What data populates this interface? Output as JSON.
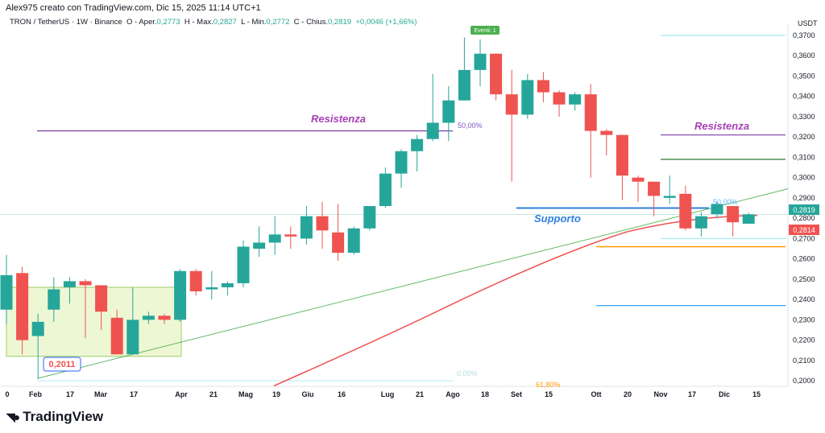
{
  "header": {
    "credit": "Alex975 creato con TradingView.com, Dic 15, 2025 11:14 UTC+1"
  },
  "legend": {
    "symbol": "TRON / TetherUS · 1W · Binance",
    "o_label": "O - Aper.",
    "o": "0,2773",
    "h_label": "H - Max.",
    "h": "0,2827",
    "l_label": "L - Min.",
    "l": "0,2772",
    "c_label": "C - Chius.",
    "c": "0,2819",
    "change": "+0,0046 (+1,66%)"
  },
  "axis": {
    "currency": "USDT",
    "prices": [
      "0,3700",
      "0,3600",
      "0,3500",
      "0,3400",
      "0,3300",
      "0,3200",
      "0,3100",
      "0,3000",
      "0,2900",
      "0,2800",
      "0,2700",
      "0,2600",
      "0,2500",
      "0,2400",
      "0,2300",
      "0,2200",
      "0,2100",
      "0,2000"
    ],
    "last_price": "0,2819",
    "ma_price": "0,2814",
    "dates": [
      "0",
      "Feb",
      "17",
      "Mar",
      "17",
      "Apr",
      "21",
      "Mag",
      "19",
      "Giu",
      "16",
      "Lug",
      "21",
      "Ago",
      "18",
      "Set",
      "15",
      "Ott",
      "20",
      "Nov",
      "17",
      "Dic",
      "15"
    ]
  },
  "annotations": {
    "resistance_left": "Resistenza",
    "resistance_right": "Resistenza",
    "support": "Supporto",
    "fib50_left": "50,00%",
    "fib50_right": "50,00%",
    "fib0": "0,00%",
    "fib618": "61,80%",
    "low_label": "0,2011",
    "event": "Eventi: 1"
  },
  "colors": {
    "up": "#26a69a",
    "down": "#ef5350",
    "ma": "#f05050",
    "trend": "#4caf50",
    "purple": "#7b3fa8",
    "support": "#2f7fe0"
  },
  "candles": [
    [
      0.235,
      0.252,
      0.262,
      0.228
    ],
    [
      0.253,
      0.22,
      0.256,
      0.213
    ],
    [
      0.222,
      0.229,
      0.233,
      0.2011
    ],
    [
      0.235,
      0.245,
      0.251,
      0.229
    ],
    [
      0.246,
      0.249,
      0.251,
      0.238
    ],
    [
      0.249,
      0.247,
      0.25,
      0.221
    ],
    [
      0.247,
      0.234,
      0.247,
      0.225
    ],
    [
      0.231,
      0.213,
      0.235,
      0.213
    ],
    [
      0.213,
      0.23,
      0.246,
      0.213
    ],
    [
      0.23,
      0.232,
      0.234,
      0.228
    ],
    [
      0.232,
      0.23,
      0.233,
      0.228
    ],
    [
      0.23,
      0.254,
      0.255,
      0.229
    ],
    [
      0.254,
      0.244,
      0.255,
      0.242
    ],
    [
      0.245,
      0.246,
      0.254,
      0.24
    ],
    [
      0.246,
      0.248,
      0.249,
      0.242
    ],
    [
      0.248,
      0.266,
      0.269,
      0.246
    ],
    [
      0.265,
      0.268,
      0.276,
      0.261
    ],
    [
      0.268,
      0.272,
      0.281,
      0.262
    ],
    [
      0.272,
      0.271,
      0.276,
      0.265
    ],
    [
      0.27,
      0.281,
      0.286,
      0.267
    ],
    [
      0.281,
      0.274,
      0.288,
      0.265
    ],
    [
      0.273,
      0.263,
      0.287,
      0.259
    ],
    [
      0.263,
      0.275,
      0.276,
      0.262
    ],
    [
      0.275,
      0.286,
      0.286,
      0.274
    ],
    [
      0.286,
      0.302,
      0.305,
      0.285
    ],
    [
      0.302,
      0.313,
      0.314,
      0.295
    ],
    [
      0.313,
      0.319,
      0.321,
      0.303
    ],
    [
      0.319,
      0.327,
      0.351,
      0.318
    ],
    [
      0.327,
      0.338,
      0.345,
      0.318
    ],
    [
      0.338,
      0.353,
      0.369,
      0.338
    ],
    [
      0.353,
      0.361,
      0.368,
      0.345
    ],
    [
      0.361,
      0.341,
      0.361,
      0.338
    ],
    [
      0.341,
      0.331,
      0.353,
      0.298
    ],
    [
      0.331,
      0.348,
      0.351,
      0.329
    ],
    [
      0.348,
      0.342,
      0.352,
      0.337
    ],
    [
      0.342,
      0.336,
      0.343,
      0.33
    ],
    [
      0.336,
      0.341,
      0.342,
      0.333
    ],
    [
      0.341,
      0.323,
      0.346,
      0.3
    ],
    [
      0.323,
      0.321,
      0.324,
      0.311
    ],
    [
      0.321,
      0.301,
      0.321,
      0.289
    ],
    [
      0.3,
      0.298,
      0.301,
      0.288
    ],
    [
      0.298,
      0.291,
      0.298,
      0.281
    ],
    [
      0.29,
      0.291,
      0.301,
      0.287
    ],
    [
      0.292,
      0.275,
      0.296,
      0.274
    ],
    [
      0.275,
      0.281,
      0.283,
      0.271
    ],
    [
      0.282,
      0.287,
      0.288,
      0.28
    ],
    [
      0.286,
      0.278,
      0.286,
      0.271
    ],
    [
      0.2773,
      0.2819,
      0.2827,
      0.2772
    ]
  ]
}
